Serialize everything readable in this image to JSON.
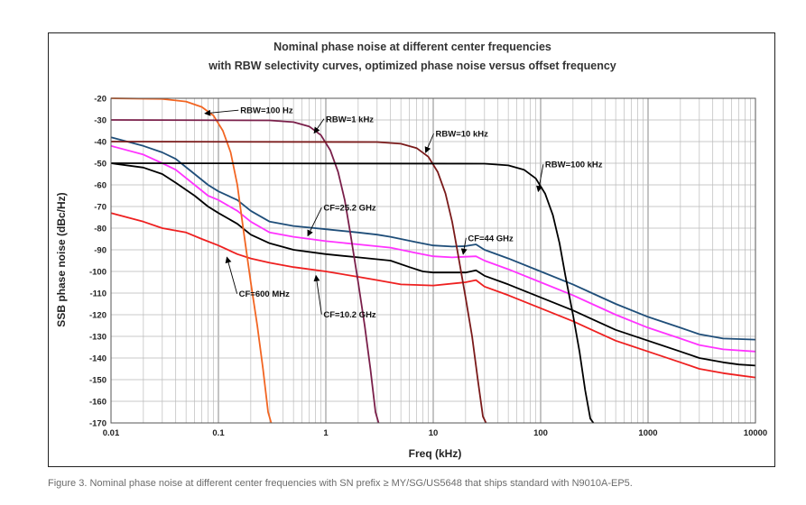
{
  "caption": "Figure 3. Nominal phase noise at different center frequencies with SN prefix ≥ MY/SG/US5648 that ships standard with N9010A-EP5.",
  "chart_data": {
    "type": "line",
    "title_line1": "Nominal phase noise at different center frequencies",
    "title_line2": "with RBW selectivity curves, optimized phase noise versus offset frequency",
    "xlabel": "Freq (kHz)",
    "ylabel": "SSB phase noise (dBc/Hz)",
    "xscale": "log",
    "xlim": [
      0.01,
      10000
    ],
    "ylim": [
      -170,
      -20
    ],
    "grid": true,
    "x_ticks": [
      0.01,
      0.1,
      1,
      10,
      100,
      1000,
      10000
    ],
    "x_tick_labels": [
      "0.01",
      "0.1",
      "1",
      "10",
      "100",
      "1000",
      "10000"
    ],
    "y_ticks": [
      -20,
      -30,
      -40,
      -50,
      -60,
      -70,
      -80,
      -90,
      -100,
      -110,
      -120,
      -130,
      -140,
      -150,
      -160,
      -170
    ],
    "y_tick_labels": [
      "-20",
      "-30",
      "-40",
      "-50",
      "-60",
      "-70",
      "-80",
      "-90",
      "-100",
      "-110",
      "-120",
      "-130",
      "-140",
      "-150",
      "-160",
      "-170"
    ],
    "colors": {
      "rbw_100hz": "#f26522",
      "rbw_1khz": "#7a1f4a",
      "rbw_10khz": "#7a1a1a",
      "rbw_100khz": "#000000",
      "cf_44ghz": "#1f4e79",
      "cf_25ghz": "#ff33ff",
      "cf_10ghz": "#000000",
      "cf_600mhz": "#ee2020"
    },
    "series": [
      {
        "name": "RBW=100 Hz",
        "color_key": "rbw_100hz",
        "points": [
          [
            0.01,
            -20
          ],
          [
            0.03,
            -20.3
          ],
          [
            0.05,
            -21.5
          ],
          [
            0.07,
            -24
          ],
          [
            0.09,
            -28
          ],
          [
            0.11,
            -35
          ],
          [
            0.13,
            -45
          ],
          [
            0.15,
            -60
          ],
          [
            0.17,
            -80
          ],
          [
            0.2,
            -105
          ],
          [
            0.23,
            -125
          ],
          [
            0.26,
            -145
          ],
          [
            0.29,
            -165
          ],
          [
            0.31,
            -170
          ]
        ]
      },
      {
        "name": "RBW=1 kHz",
        "color_key": "rbw_1khz",
        "points": [
          [
            0.01,
            -30
          ],
          [
            0.3,
            -30.2
          ],
          [
            0.5,
            -31
          ],
          [
            0.7,
            -33
          ],
          [
            0.9,
            -37
          ],
          [
            1.1,
            -44
          ],
          [
            1.3,
            -54
          ],
          [
            1.5,
            -67
          ],
          [
            1.7,
            -83
          ],
          [
            2.0,
            -105
          ],
          [
            2.3,
            -125
          ],
          [
            2.6,
            -145
          ],
          [
            2.9,
            -165
          ],
          [
            3.1,
            -170
          ]
        ]
      },
      {
        "name": "RBW=10 kHz",
        "color_key": "rbw_10khz",
        "points": [
          [
            0.01,
            -40
          ],
          [
            3,
            -40.2
          ],
          [
            5,
            -41
          ],
          [
            7,
            -43
          ],
          [
            9,
            -47
          ],
          [
            11,
            -54
          ],
          [
            13,
            -64
          ],
          [
            15,
            -77
          ],
          [
            17,
            -92
          ],
          [
            20,
            -112
          ],
          [
            23,
            -130
          ],
          [
            26,
            -150
          ],
          [
            29,
            -167
          ],
          [
            31,
            -170
          ]
        ]
      },
      {
        "name": "RBW=100 kHz",
        "color_key": "rbw_100khz",
        "points": [
          [
            0.01,
            -50
          ],
          [
            30,
            -50.2
          ],
          [
            50,
            -51
          ],
          [
            70,
            -53
          ],
          [
            90,
            -57
          ],
          [
            110,
            -64
          ],
          [
            130,
            -74
          ],
          [
            150,
            -87
          ],
          [
            170,
            -102
          ],
          [
            200,
            -120
          ],
          [
            230,
            -137
          ],
          [
            260,
            -155
          ],
          [
            290,
            -168
          ],
          [
            310,
            -170
          ]
        ]
      },
      {
        "name": "CF=44 GHz",
        "color_key": "cf_44ghz",
        "points": [
          [
            0.01,
            -38
          ],
          [
            0.02,
            -42
          ],
          [
            0.03,
            -45
          ],
          [
            0.04,
            -48
          ],
          [
            0.06,
            -55
          ],
          [
            0.08,
            -60
          ],
          [
            0.1,
            -63
          ],
          [
            0.15,
            -67
          ],
          [
            0.2,
            -72
          ],
          [
            0.3,
            -77
          ],
          [
            0.5,
            -79
          ],
          [
            1,
            -80.5
          ],
          [
            2,
            -82
          ],
          [
            3,
            -83
          ],
          [
            4,
            -84
          ],
          [
            7,
            -86.5
          ],
          [
            10,
            -88
          ],
          [
            15,
            -88.5
          ],
          [
            20,
            -88.3
          ],
          [
            25,
            -87.5
          ],
          [
            30,
            -90
          ],
          [
            50,
            -94
          ],
          [
            100,
            -100
          ],
          [
            200,
            -106
          ],
          [
            300,
            -110
          ],
          [
            500,
            -115
          ],
          [
            1000,
            -121
          ],
          [
            2000,
            -126
          ],
          [
            3000,
            -129
          ],
          [
            5000,
            -131
          ],
          [
            10000,
            -131.5
          ]
        ]
      },
      {
        "name": "CF=25.2 GHz",
        "color_key": "cf_25ghz",
        "points": [
          [
            0.01,
            -42
          ],
          [
            0.02,
            -46
          ],
          [
            0.03,
            -50
          ],
          [
            0.04,
            -53
          ],
          [
            0.06,
            -60
          ],
          [
            0.08,
            -65
          ],
          [
            0.1,
            -67
          ],
          [
            0.15,
            -72
          ],
          [
            0.2,
            -77
          ],
          [
            0.3,
            -82
          ],
          [
            0.5,
            -84
          ],
          [
            1,
            -86
          ],
          [
            2,
            -87.5
          ],
          [
            4,
            -89
          ],
          [
            7,
            -91.5
          ],
          [
            10,
            -93
          ],
          [
            15,
            -93.5
          ],
          [
            25,
            -93
          ],
          [
            30,
            -95
          ],
          [
            50,
            -99
          ],
          [
            100,
            -105
          ],
          [
            200,
            -111
          ],
          [
            300,
            -115
          ],
          [
            500,
            -120
          ],
          [
            1000,
            -126
          ],
          [
            2000,
            -131
          ],
          [
            3000,
            -134
          ],
          [
            5000,
            -136
          ],
          [
            10000,
            -137
          ]
        ]
      },
      {
        "name": "CF=10.2 GHz",
        "color_key": "cf_10ghz",
        "points": [
          [
            0.01,
            -50
          ],
          [
            0.02,
            -52
          ],
          [
            0.03,
            -55
          ],
          [
            0.04,
            -59
          ],
          [
            0.06,
            -65
          ],
          [
            0.08,
            -70
          ],
          [
            0.1,
            -73
          ],
          [
            0.15,
            -78
          ],
          [
            0.2,
            -83
          ],
          [
            0.3,
            -87
          ],
          [
            0.5,
            -90
          ],
          [
            1,
            -92
          ],
          [
            2,
            -93.5
          ],
          [
            4,
            -95
          ],
          [
            6,
            -98
          ],
          [
            8,
            -100
          ],
          [
            10,
            -100.5
          ],
          [
            20,
            -100.5
          ],
          [
            25,
            -99.5
          ],
          [
            30,
            -102
          ],
          [
            50,
            -106
          ],
          [
            100,
            -112
          ],
          [
            200,
            -118
          ],
          [
            300,
            -122
          ],
          [
            500,
            -127
          ],
          [
            1000,
            -132
          ],
          [
            2000,
            -137
          ],
          [
            3000,
            -140
          ],
          [
            5000,
            -142
          ],
          [
            7000,
            -143
          ],
          [
            10000,
            -143.5
          ]
        ]
      },
      {
        "name": "CF=600 MHz",
        "color_key": "cf_600mhz",
        "points": [
          [
            0.01,
            -73
          ],
          [
            0.02,
            -77
          ],
          [
            0.03,
            -80
          ],
          [
            0.05,
            -82
          ],
          [
            0.07,
            -85
          ],
          [
            0.1,
            -88
          ],
          [
            0.15,
            -92
          ],
          [
            0.2,
            -94
          ],
          [
            0.3,
            -96
          ],
          [
            0.5,
            -98
          ],
          [
            1,
            -100
          ],
          [
            2,
            -102.5
          ],
          [
            3,
            -104
          ],
          [
            5,
            -106
          ],
          [
            10,
            -106.5
          ],
          [
            20,
            -105
          ],
          [
            25,
            -104
          ],
          [
            30,
            -107
          ],
          [
            50,
            -111
          ],
          [
            100,
            -117
          ],
          [
            200,
            -123
          ],
          [
            300,
            -127
          ],
          [
            500,
            -132
          ],
          [
            1000,
            -137
          ],
          [
            2000,
            -142
          ],
          [
            3000,
            -145
          ],
          [
            5000,
            -147
          ],
          [
            7000,
            -148
          ],
          [
            10000,
            -149
          ]
        ]
      }
    ],
    "annotations": [
      {
        "text": "RBW=100 Hz",
        "label_at": [
          0.16,
          -25.5
        ],
        "arrow_to": [
          0.075,
          -27
        ]
      },
      {
        "text": "RBW=1 kHz",
        "label_at": [
          1.0,
          -29.5
        ],
        "arrow_to": [
          0.78,
          -36
        ]
      },
      {
        "text": "RBW=10 kHz",
        "label_at": [
          10.5,
          -36.3
        ],
        "arrow_to": [
          8.5,
          -45
        ]
      },
      {
        "text": "RBW=100 kHz",
        "label_at": [
          110,
          -50.5
        ],
        "arrow_to": [
          95,
          -63
        ]
      },
      {
        "text": "CF=25.2 GHz",
        "label_at": [
          0.95,
          -70.5
        ],
        "arrow_to": [
          0.68,
          -83.5
        ]
      },
      {
        "text": "CF=44 GHz",
        "label_at": [
          21,
          -84.5
        ],
        "arrow_to": [
          19,
          -92
        ]
      },
      {
        "text": "CF=600 MHz",
        "label_at": [
          0.155,
          -110.3
        ],
        "arrow_to": [
          0.12,
          -93.5
        ]
      },
      {
        "text": "CF=10.2 GHz",
        "label_at": [
          0.95,
          -119.8
        ],
        "arrow_to": [
          0.81,
          -102
        ]
      }
    ]
  }
}
